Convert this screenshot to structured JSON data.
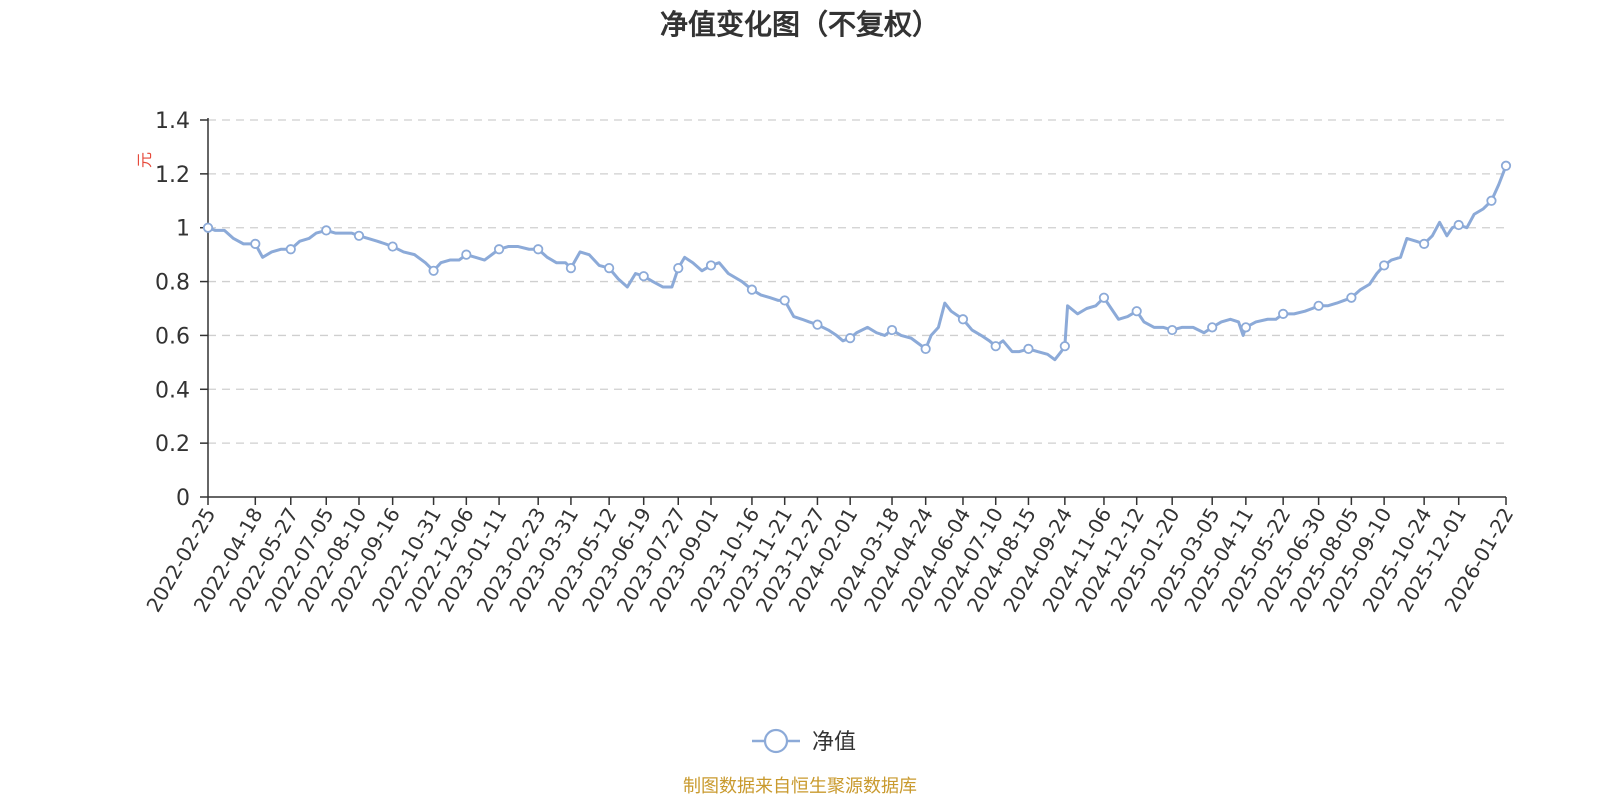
{
  "chart_data": {
    "type": "line",
    "title": "净值变化图（不复权）",
    "y_unit": "元",
    "ylim": [
      0,
      1.4
    ],
    "y_ticks": [
      0,
      0.2,
      0.4,
      0.6,
      0.8,
      1,
      1.2,
      1.4
    ],
    "y_tick_labels": [
      "0",
      "0.2",
      "0.4",
      "0.6",
      "0.8",
      "1",
      "1.2",
      "1.4"
    ],
    "x_tick_labels": [
      "2022-02-25",
      "2022-04-18",
      "2022-05-27",
      "2022-07-05",
      "2022-08-10",
      "2022-09-16",
      "2022-10-31",
      "2022-12-06",
      "2023-01-11",
      "2023-02-23",
      "2023-03-31",
      "2023-05-12",
      "2023-06-19",
      "2023-07-27",
      "2023-09-01",
      "2023-10-16",
      "2023-11-21",
      "2023-12-27",
      "2024-02-01",
      "2024-03-18",
      "2024-04-24",
      "2024-06-04",
      "2024-07-10",
      "2024-08-15",
      "2024-09-24",
      "2024-11-06",
      "2024-12-12",
      "2025-01-20",
      "2025-03-05",
      "2025-04-11",
      "2025-05-22",
      "2025-06-30",
      "2025-08-05",
      "2025-09-10",
      "2025-10-24",
      "2025-12-01",
      "2026-01-22"
    ],
    "grid": true,
    "legend_position": "bottom-center",
    "series": [
      {
        "name": "净值",
        "color": "#8caad8",
        "points": [
          {
            "x": "2022-02-25",
            "y": 1.0
          },
          {
            "x": "2022-03-05",
            "y": 0.99
          },
          {
            "x": "2022-03-15",
            "y": 0.99
          },
          {
            "x": "2022-03-25",
            "y": 0.96
          },
          {
            "x": "2022-04-05",
            "y": 0.94
          },
          {
            "x": "2022-04-18",
            "y": 0.94
          },
          {
            "x": "2022-04-26",
            "y": 0.89
          },
          {
            "x": "2022-05-06",
            "y": 0.91
          },
          {
            "x": "2022-05-16",
            "y": 0.92
          },
          {
            "x": "2022-05-27",
            "y": 0.92
          },
          {
            "x": "2022-06-06",
            "y": 0.95
          },
          {
            "x": "2022-06-16",
            "y": 0.96
          },
          {
            "x": "2022-06-24",
            "y": 0.98
          },
          {
            "x": "2022-07-05",
            "y": 0.99
          },
          {
            "x": "2022-07-15",
            "y": 0.98
          },
          {
            "x": "2022-07-25",
            "y": 0.98
          },
          {
            "x": "2022-08-02",
            "y": 0.98
          },
          {
            "x": "2022-08-10",
            "y": 0.97
          },
          {
            "x": "2022-08-20",
            "y": 0.96
          },
          {
            "x": "2022-08-30",
            "y": 0.95
          },
          {
            "x": "2022-09-08",
            "y": 0.94
          },
          {
            "x": "2022-09-16",
            "y": 0.93
          },
          {
            "x": "2022-09-28",
            "y": 0.91
          },
          {
            "x": "2022-10-10",
            "y": 0.9
          },
          {
            "x": "2022-10-22",
            "y": 0.87
          },
          {
            "x": "2022-10-31",
            "y": 0.84
          },
          {
            "x": "2022-11-08",
            "y": 0.87
          },
          {
            "x": "2022-11-18",
            "y": 0.88
          },
          {
            "x": "2022-11-28",
            "y": 0.88
          },
          {
            "x": "2022-12-06",
            "y": 0.9
          },
          {
            "x": "2022-12-16",
            "y": 0.89
          },
          {
            "x": "2022-12-26",
            "y": 0.88
          },
          {
            "x": "2023-01-03",
            "y": 0.9
          },
          {
            "x": "2023-01-11",
            "y": 0.92
          },
          {
            "x": "2023-01-21",
            "y": 0.93
          },
          {
            "x": "2023-02-01",
            "y": 0.93
          },
          {
            "x": "2023-02-13",
            "y": 0.92
          },
          {
            "x": "2023-02-23",
            "y": 0.92
          },
          {
            "x": "2023-03-05",
            "y": 0.89
          },
          {
            "x": "2023-03-15",
            "y": 0.87
          },
          {
            "x": "2023-03-25",
            "y": 0.87
          },
          {
            "x": "2023-03-31",
            "y": 0.85
          },
          {
            "x": "2023-04-10",
            "y": 0.91
          },
          {
            "x": "2023-04-20",
            "y": 0.9
          },
          {
            "x": "2023-05-01",
            "y": 0.86
          },
          {
            "x": "2023-05-12",
            "y": 0.85
          },
          {
            "x": "2023-05-22",
            "y": 0.81
          },
          {
            "x": "2023-06-01",
            "y": 0.78
          },
          {
            "x": "2023-06-10",
            "y": 0.83
          },
          {
            "x": "2023-06-19",
            "y": 0.82
          },
          {
            "x": "2023-06-29",
            "y": 0.8
          },
          {
            "x": "2023-07-10",
            "y": 0.78
          },
          {
            "x": "2023-07-20",
            "y": 0.78
          },
          {
            "x": "2023-07-27",
            "y": 0.85
          },
          {
            "x": "2023-08-03",
            "y": 0.89
          },
          {
            "x": "2023-08-12",
            "y": 0.87
          },
          {
            "x": "2023-08-22",
            "y": 0.84
          },
          {
            "x": "2023-09-01",
            "y": 0.86
          },
          {
            "x": "2023-09-10",
            "y": 0.87
          },
          {
            "x": "2023-09-20",
            "y": 0.83
          },
          {
            "x": "2023-10-05",
            "y": 0.8
          },
          {
            "x": "2023-10-16",
            "y": 0.77
          },
          {
            "x": "2023-10-26",
            "y": 0.75
          },
          {
            "x": "2023-11-05",
            "y": 0.74
          },
          {
            "x": "2023-11-14",
            "y": 0.73
          },
          {
            "x": "2023-11-21",
            "y": 0.73
          },
          {
            "x": "2023-12-01",
            "y": 0.67
          },
          {
            "x": "2023-12-10",
            "y": 0.66
          },
          {
            "x": "2023-12-18",
            "y": 0.65
          },
          {
            "x": "2023-12-27",
            "y": 0.64
          },
          {
            "x": "2024-01-08",
            "y": 0.62
          },
          {
            "x": "2024-01-17",
            "y": 0.6
          },
          {
            "x": "2024-01-24",
            "y": 0.58
          },
          {
            "x": "2024-02-01",
            "y": 0.59
          },
          {
            "x": "2024-02-08",
            "y": 0.61
          },
          {
            "x": "2024-02-20",
            "y": 0.63
          },
          {
            "x": "2024-03-01",
            "y": 0.61
          },
          {
            "x": "2024-03-10",
            "y": 0.6
          },
          {
            "x": "2024-03-18",
            "y": 0.62
          },
          {
            "x": "2024-03-28",
            "y": 0.6
          },
          {
            "x": "2024-04-08",
            "y": 0.59
          },
          {
            "x": "2024-04-16",
            "y": 0.57
          },
          {
            "x": "2024-04-24",
            "y": 0.55
          },
          {
            "x": "2024-04-30",
            "y": 0.6
          },
          {
            "x": "2024-05-08",
            "y": 0.63
          },
          {
            "x": "2024-05-15",
            "y": 0.72
          },
          {
            "x": "2024-05-22",
            "y": 0.69
          },
          {
            "x": "2024-06-04",
            "y": 0.66
          },
          {
            "x": "2024-06-14",
            "y": 0.62
          },
          {
            "x": "2024-06-24",
            "y": 0.6
          },
          {
            "x": "2024-07-03",
            "y": 0.58
          },
          {
            "x": "2024-07-10",
            "y": 0.56
          },
          {
            "x": "2024-07-18",
            "y": 0.58
          },
          {
            "x": "2024-07-28",
            "y": 0.54
          },
          {
            "x": "2024-08-05",
            "y": 0.54
          },
          {
            "x": "2024-08-15",
            "y": 0.55
          },
          {
            "x": "2024-08-25",
            "y": 0.54
          },
          {
            "x": "2024-09-05",
            "y": 0.53
          },
          {
            "x": "2024-09-13",
            "y": 0.51
          },
          {
            "x": "2024-09-20",
            "y": 0.54
          },
          {
            "x": "2024-09-24",
            "y": 0.56
          },
          {
            "x": "2024-09-27",
            "y": 0.71
          },
          {
            "x": "2024-10-08",
            "y": 0.68
          },
          {
            "x": "2024-10-18",
            "y": 0.7
          },
          {
            "x": "2024-10-28",
            "y": 0.71
          },
          {
            "x": "2024-11-06",
            "y": 0.74
          },
          {
            "x": "2024-11-14",
            "y": 0.7
          },
          {
            "x": "2024-11-22",
            "y": 0.66
          },
          {
            "x": "2024-12-02",
            "y": 0.67
          },
          {
            "x": "2024-12-12",
            "y": 0.69
          },
          {
            "x": "2024-12-20",
            "y": 0.65
          },
          {
            "x": "2024-12-31",
            "y": 0.63
          },
          {
            "x": "2025-01-10",
            "y": 0.63
          },
          {
            "x": "2025-01-20",
            "y": 0.62
          },
          {
            "x": "2025-01-31",
            "y": 0.63
          },
          {
            "x": "2025-02-12",
            "y": 0.63
          },
          {
            "x": "2025-02-24",
            "y": 0.61
          },
          {
            "x": "2025-03-05",
            "y": 0.63
          },
          {
            "x": "2025-03-15",
            "y": 0.65
          },
          {
            "x": "2025-03-25",
            "y": 0.66
          },
          {
            "x": "2025-04-03",
            "y": 0.65
          },
          {
            "x": "2025-04-08",
            "y": 0.6
          },
          {
            "x": "2025-04-11",
            "y": 0.63
          },
          {
            "x": "2025-04-22",
            "y": 0.65
          },
          {
            "x": "2025-05-05",
            "y": 0.66
          },
          {
            "x": "2025-05-14",
            "y": 0.66
          },
          {
            "x": "2025-05-22",
            "y": 0.68
          },
          {
            "x": "2025-06-03",
            "y": 0.68
          },
          {
            "x": "2025-06-15",
            "y": 0.69
          },
          {
            "x": "2025-06-23",
            "y": 0.7
          },
          {
            "x": "2025-06-30",
            "y": 0.71
          },
          {
            "x": "2025-07-10",
            "y": 0.71
          },
          {
            "x": "2025-07-20",
            "y": 0.72
          },
          {
            "x": "2025-07-28",
            "y": 0.73
          },
          {
            "x": "2025-08-05",
            "y": 0.74
          },
          {
            "x": "2025-08-15",
            "y": 0.77
          },
          {
            "x": "2025-08-25",
            "y": 0.79
          },
          {
            "x": "2025-09-02",
            "y": 0.83
          },
          {
            "x": "2025-09-10",
            "y": 0.86
          },
          {
            "x": "2025-09-18",
            "y": 0.88
          },
          {
            "x": "2025-09-28",
            "y": 0.89
          },
          {
            "x": "2025-10-05",
            "y": 0.96
          },
          {
            "x": "2025-10-15",
            "y": 0.95
          },
          {
            "x": "2025-10-24",
            "y": 0.94
          },
          {
            "x": "2025-11-02",
            "y": 0.97
          },
          {
            "x": "2025-11-10",
            "y": 1.02
          },
          {
            "x": "2025-11-18",
            "y": 0.97
          },
          {
            "x": "2025-11-24",
            "y": 1.0
          },
          {
            "x": "2025-12-01",
            "y": 1.01
          },
          {
            "x": "2025-12-10",
            "y": 1.0
          },
          {
            "x": "2025-12-18",
            "y": 1.05
          },
          {
            "x": "2025-12-28",
            "y": 1.07
          },
          {
            "x": "2026-01-06",
            "y": 1.1
          },
          {
            "x": "2026-01-14",
            "y": 1.16
          },
          {
            "x": "2026-01-22",
            "y": 1.23
          }
        ]
      }
    ],
    "markers": [
      {
        "x": "2022-02-25",
        "y": 1.0
      },
      {
        "x": "2022-04-18",
        "y": 0.94
      },
      {
        "x": "2022-05-27",
        "y": 0.92
      },
      {
        "x": "2022-07-05",
        "y": 0.99
      },
      {
        "x": "2022-08-10",
        "y": 0.97
      },
      {
        "x": "2022-09-16",
        "y": 0.93
      },
      {
        "x": "2022-10-31",
        "y": 0.84
      },
      {
        "x": "2022-12-06",
        "y": 0.9
      },
      {
        "x": "2023-01-11",
        "y": 0.92
      },
      {
        "x": "2023-02-23",
        "y": 0.92
      },
      {
        "x": "2023-03-31",
        "y": 0.85
      },
      {
        "x": "2023-05-12",
        "y": 0.85
      },
      {
        "x": "2023-06-19",
        "y": 0.82
      },
      {
        "x": "2023-07-27",
        "y": 0.85
      },
      {
        "x": "2023-09-01",
        "y": 0.86
      },
      {
        "x": "2023-10-16",
        "y": 0.77
      },
      {
        "x": "2023-11-21",
        "y": 0.73
      },
      {
        "x": "2023-12-27",
        "y": 0.64
      },
      {
        "x": "2024-02-01",
        "y": 0.59
      },
      {
        "x": "2024-03-18",
        "y": 0.62
      },
      {
        "x": "2024-04-24",
        "y": 0.55
      },
      {
        "x": "2024-06-04",
        "y": 0.66
      },
      {
        "x": "2024-07-10",
        "y": 0.56
      },
      {
        "x": "2024-08-15",
        "y": 0.55
      },
      {
        "x": "2024-09-24",
        "y": 0.56
      },
      {
        "x": "2024-11-06",
        "y": 0.74
      },
      {
        "x": "2024-12-12",
        "y": 0.69
      },
      {
        "x": "2025-01-20",
        "y": 0.62
      },
      {
        "x": "2025-03-05",
        "y": 0.63
      },
      {
        "x": "2025-04-11",
        "y": 0.63
      },
      {
        "x": "2025-05-22",
        "y": 0.68
      },
      {
        "x": "2025-06-30",
        "y": 0.71
      },
      {
        "x": "2025-08-05",
        "y": 0.74
      },
      {
        "x": "2025-09-10",
        "y": 0.86
      },
      {
        "x": "2025-10-24",
        "y": 0.94
      },
      {
        "x": "2025-12-01",
        "y": 1.01
      },
      {
        "x": "2026-01-06",
        "y": 1.1
      },
      {
        "x": "2026-01-22",
        "y": 1.23
      }
    ]
  },
  "legend": {
    "label": "净值",
    "color": "#8caad8"
  },
  "footer": {
    "source": "制图数据来自恒生聚源数据库",
    "color": "#c99a2e"
  }
}
